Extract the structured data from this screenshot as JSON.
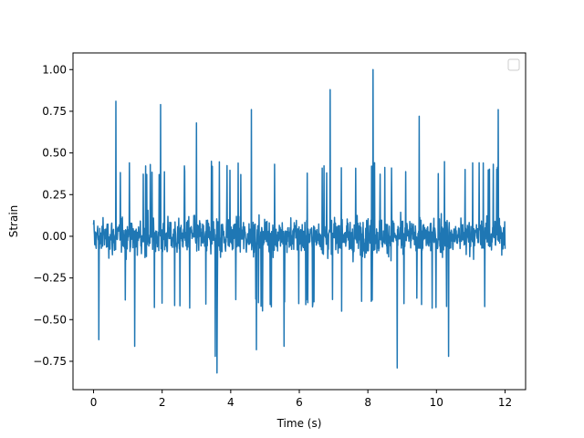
{
  "chart_data": {
    "type": "line",
    "title": "",
    "xlabel": "Time (s)",
    "ylabel": "Strain",
    "xlim": [
      -0.6,
      12.6
    ],
    "ylim": [
      -0.92,
      1.1
    ],
    "x_ticks": [
      0,
      2,
      4,
      6,
      8,
      10,
      12
    ],
    "x_tick_labels": [
      "0",
      "2",
      "4",
      "6",
      "8",
      "10",
      "12"
    ],
    "y_ticks": [
      -0.75,
      -0.5,
      -0.25,
      0.0,
      0.25,
      0.5,
      0.75,
      1.0
    ],
    "y_tick_labels": [
      "−0.75",
      "−0.50",
      "−0.25",
      "0.00",
      "0.25",
      "0.50",
      "0.75",
      "1.00"
    ],
    "grid": false,
    "legend": {
      "placement": "top-right",
      "entries": []
    },
    "series": [
      {
        "color": "#1f77b4",
        "x_range": [
          0,
          12
        ],
        "typical_band": [
          -0.45,
          0.45
        ],
        "peaks": [
          {
            "x": 0.65,
            "y": 0.81
          },
          {
            "x": 1.95,
            "y": 0.79
          },
          {
            "x": 3.0,
            "y": 0.68
          },
          {
            "x": 4.6,
            "y": 0.76
          },
          {
            "x": 6.9,
            "y": 0.88
          },
          {
            "x": 8.15,
            "y": 1.0
          },
          {
            "x": 9.5,
            "y": 0.72
          },
          {
            "x": 11.8,
            "y": 0.76
          }
        ],
        "troughs": [
          {
            "x": 0.15,
            "y": -0.62
          },
          {
            "x": 1.2,
            "y": -0.66
          },
          {
            "x": 3.55,
            "y": -0.72
          },
          {
            "x": 3.6,
            "y": -0.82
          },
          {
            "x": 4.75,
            "y": -0.68
          },
          {
            "x": 5.55,
            "y": -0.66
          },
          {
            "x": 8.85,
            "y": -0.79
          },
          {
            "x": 10.35,
            "y": -0.72
          }
        ]
      }
    ]
  }
}
